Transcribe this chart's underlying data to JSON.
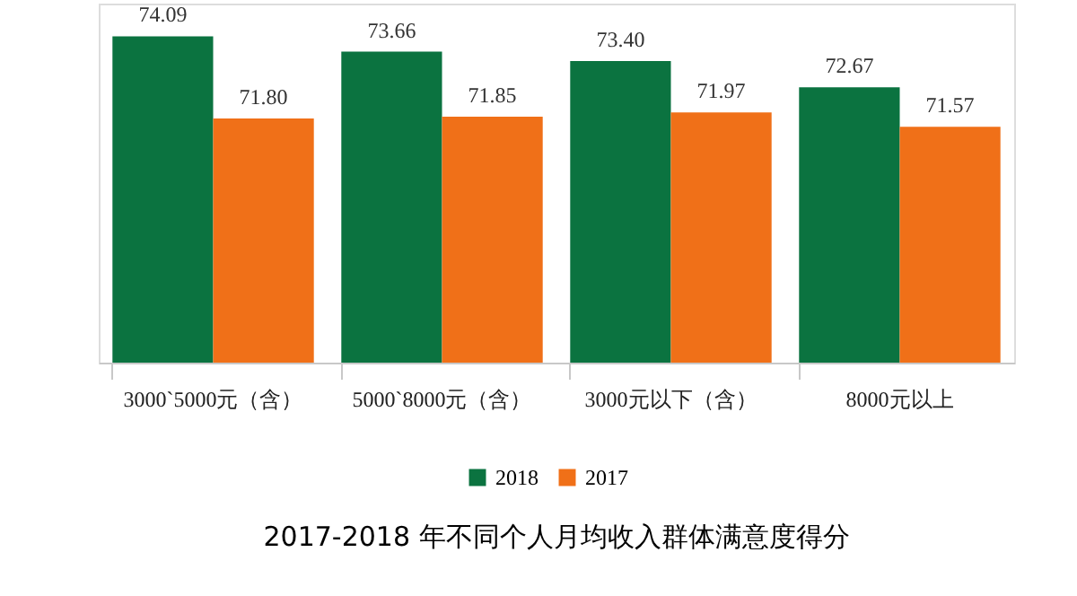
{
  "chart_data": {
    "type": "bar",
    "title": "2017-2018 年不同个人月均收入群体满意度得分",
    "categories": [
      "3000`5000元（含）",
      "5000`8000元（含）",
      "3000元以下（含）",
      "8000元以上"
    ],
    "series": [
      {
        "name": "2018",
        "color": "#0b7340",
        "values": [
          74.09,
          73.66,
          73.4,
          72.67
        ],
        "value_labels": [
          "74.09",
          "73.66",
          "73.40",
          "72.67"
        ]
      },
      {
        "name": "2017",
        "color": "#f07018",
        "values": [
          71.8,
          71.85,
          71.97,
          71.57
        ],
        "value_labels": [
          "71.80",
          "71.85",
          "71.97",
          "71.57"
        ]
      }
    ],
    "ylim": [
      65,
      75
    ],
    "tick_labels": "x",
    "legend": "bottom",
    "grid": false
  }
}
